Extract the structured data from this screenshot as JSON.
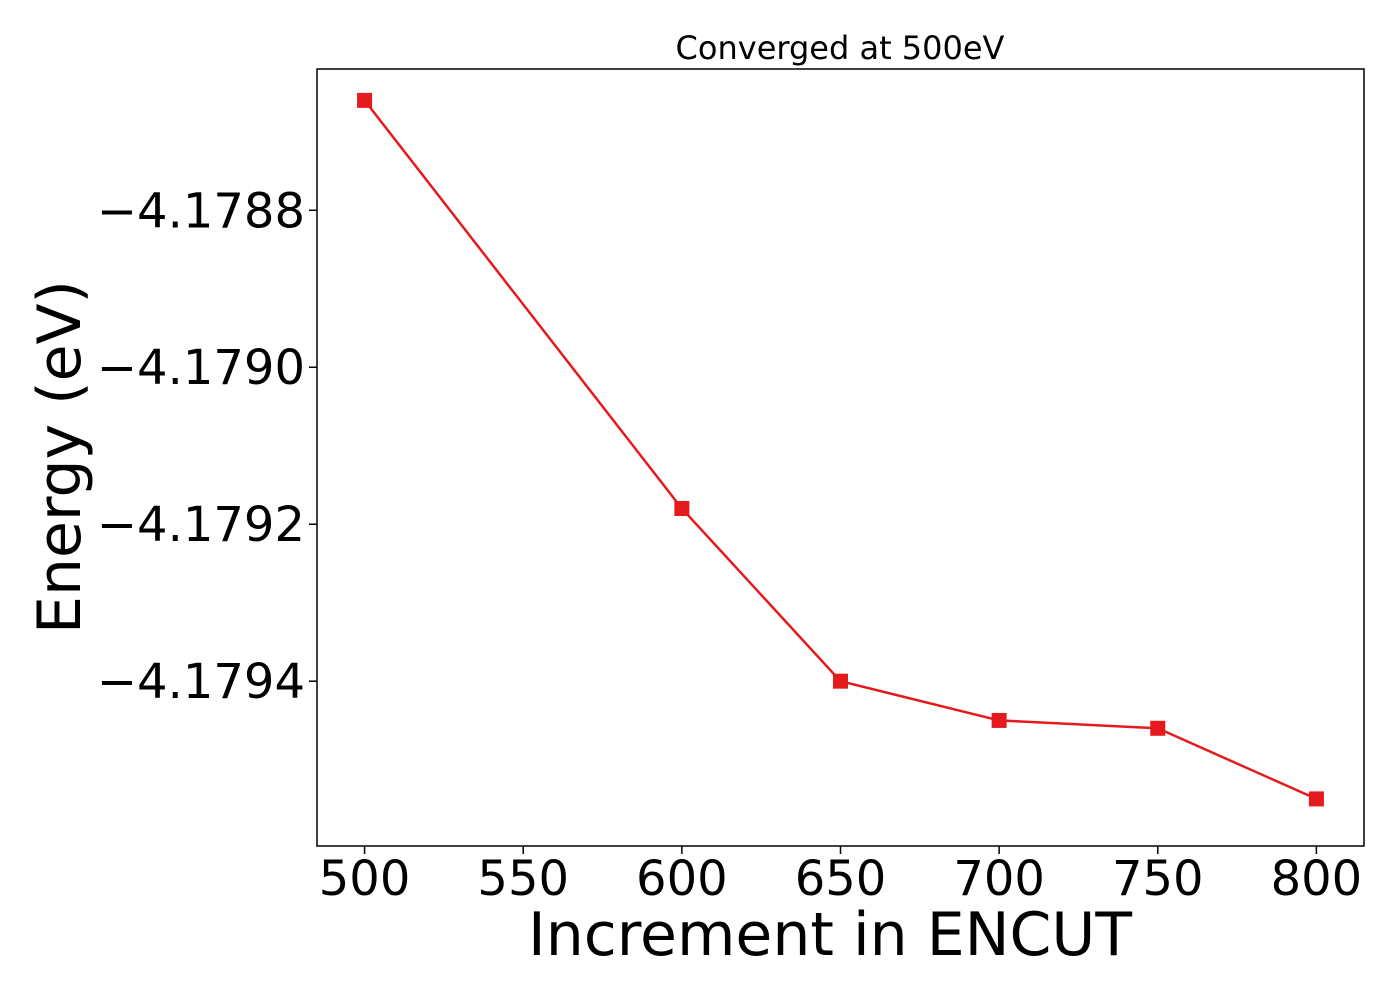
{
  "chart_data": {
    "type": "line",
    "title": "Converged at 500eV",
    "xlabel": "Increment in ENCUT",
    "ylabel": "Energy (eV)",
    "x": [
      500,
      600,
      650,
      700,
      750,
      800
    ],
    "series": [
      {
        "values": [
          -4.17866,
          -4.17918,
          -4.1794,
          -4.17945,
          -4.17946,
          -4.17955
        ],
        "color": "#e41a1c",
        "marker": "square"
      }
    ],
    "xlim": [
      485,
      815
    ],
    "ylim": [
      -4.17961,
      -4.17862
    ],
    "xticks": [
      500,
      550,
      600,
      650,
      700,
      750,
      800
    ],
    "xtick_labels": [
      "500",
      "550",
      "600",
      "650",
      "700",
      "750",
      "800"
    ],
    "yticks": [
      -4.1788,
      -4.179,
      -4.1792,
      -4.1794
    ],
    "ytick_labels": [
      "−4.1788",
      "−4.1790",
      "−4.1792",
      "−4.1794"
    ],
    "grid": false,
    "legend": false
  }
}
